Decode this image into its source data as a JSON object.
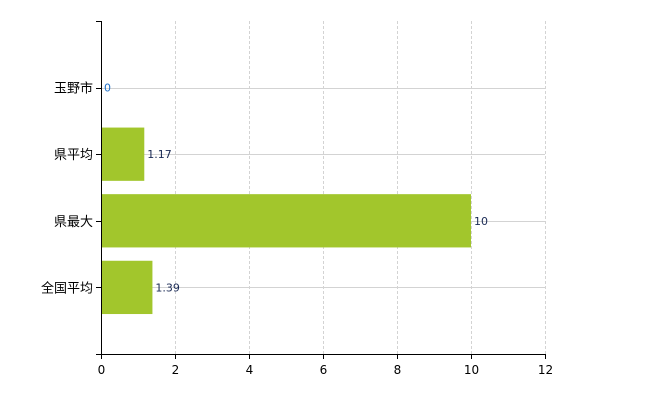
{
  "chart_data": {
    "type": "bar",
    "orientation": "horizontal",
    "categories": [
      "玉野市",
      "県平均",
      "県最大",
      "全国平均"
    ],
    "values": [
      0,
      1.17,
      10,
      1.39
    ],
    "data_labels": [
      "0",
      "1.17",
      "10",
      "1.39"
    ],
    "title": "",
    "xlabel": "",
    "ylabel": "",
    "xlim": [
      0,
      12
    ],
    "x_ticks": [
      "0",
      "2",
      "4",
      "6",
      "8",
      "10",
      "12"
    ],
    "grid": true,
    "legend": "none",
    "bar_color": "#a2c62c",
    "grid_color": "#d3d3d3"
  }
}
